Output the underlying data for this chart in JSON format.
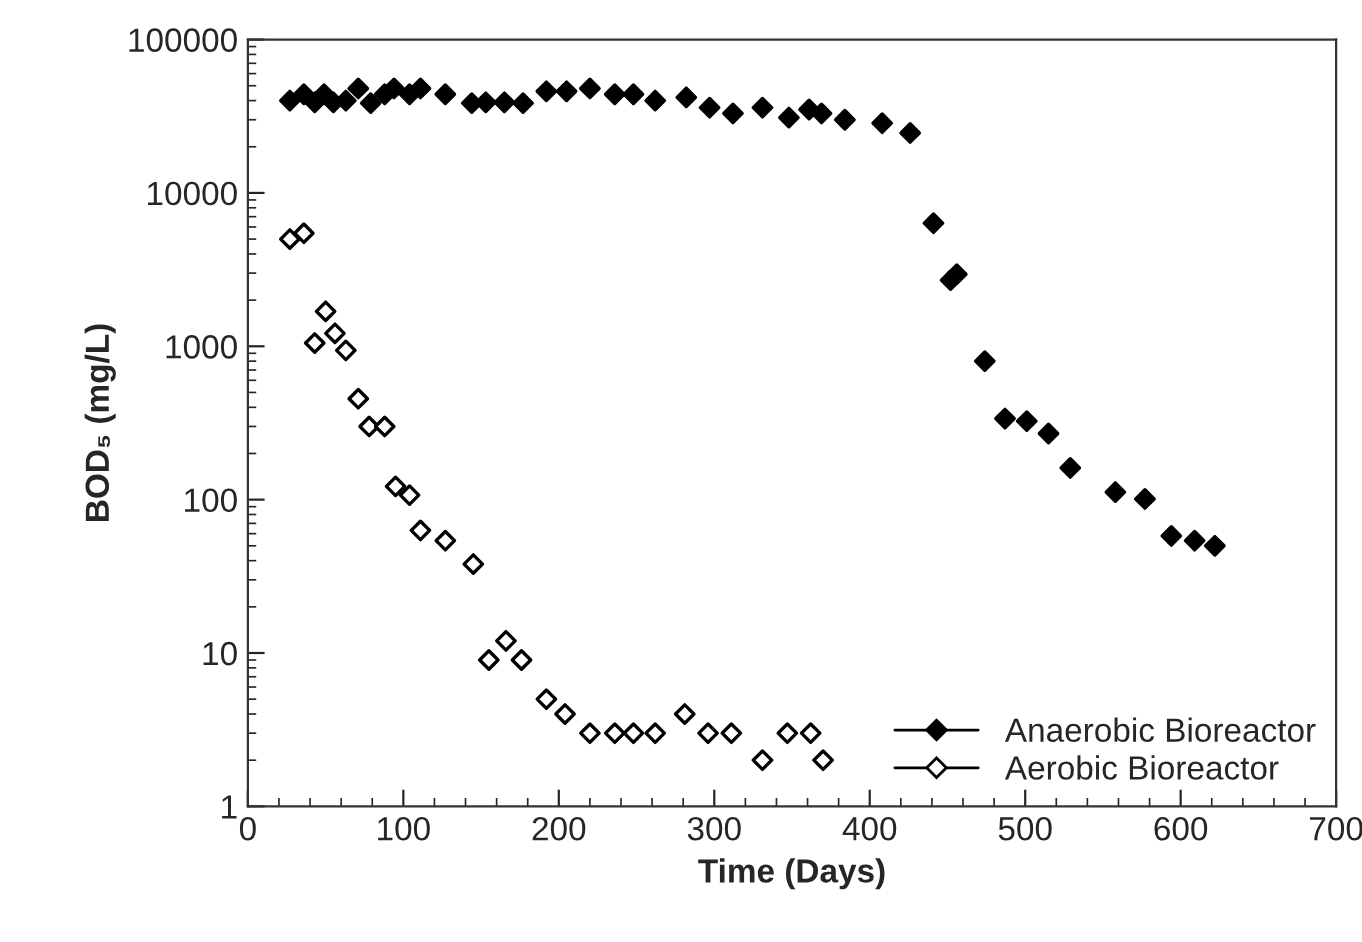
{
  "chart_data": {
    "type": "scatter",
    "xlabel": "Time (Days)",
    "ylabel": "BOD₅ (mg/L)",
    "log": "y",
    "xlim": [
      0,
      700
    ],
    "xticks": [
      0,
      100,
      200,
      300,
      400,
      500,
      600,
      700
    ],
    "ylim": [
      1,
      100000
    ],
    "yticks": [
      1,
      10,
      100,
      1000,
      10000,
      100000
    ],
    "grid": false,
    "legend": "bottom right",
    "marker": "diamond",
    "series": [
      {
        "name": "Anaerobic Bioreactor",
        "color": "#000000",
        "x": [
          27,
          36,
          43,
          49,
          55,
          63,
          71,
          79,
          88,
          94,
          104,
          111,
          127,
          144,
          153,
          165,
          177,
          192,
          205,
          220,
          236,
          248,
          262,
          282,
          297,
          312,
          331,
          348,
          361,
          369,
          384,
          408,
          426,
          441,
          452,
          456,
          474,
          487,
          501,
          515,
          529,
          558,
          577,
          594,
          609,
          622
        ],
        "values": [
          40000,
          44000,
          39000,
          44000,
          39000,
          40000,
          48000,
          38500,
          44000,
          48000,
          44000,
          48000,
          44000,
          38500,
          39000,
          39000,
          38500,
          46000,
          46000,
          48000,
          44000,
          44000,
          40000,
          42000,
          36000,
          33000,
          36000,
          31000,
          35000,
          33000,
          30000,
          28500,
          24600,
          6350,
          2700,
          2950,
          800,
          338,
          325,
          270,
          161,
          112,
          101,
          58,
          54,
          50
        ]
      },
      {
        "name": "Aerobic Bioreactor",
        "color": "#ffffff",
        "x": [
          27,
          36,
          43,
          50,
          56,
          63,
          71,
          78,
          88,
          95,
          104,
          111,
          127,
          145,
          155,
          166,
          176,
          192,
          204,
          220,
          236,
          248,
          262,
          281,
          296,
          311,
          331,
          347,
          362,
          370
        ],
        "values": [
          5000,
          5460,
          1050,
          1690,
          1215,
          940,
          455,
          300,
          300,
          122,
          107,
          63,
          54,
          38,
          9,
          12,
          9,
          5,
          4,
          3,
          3,
          3,
          3,
          4,
          3,
          3,
          2,
          3,
          3,
          2
        ]
      }
    ]
  }
}
